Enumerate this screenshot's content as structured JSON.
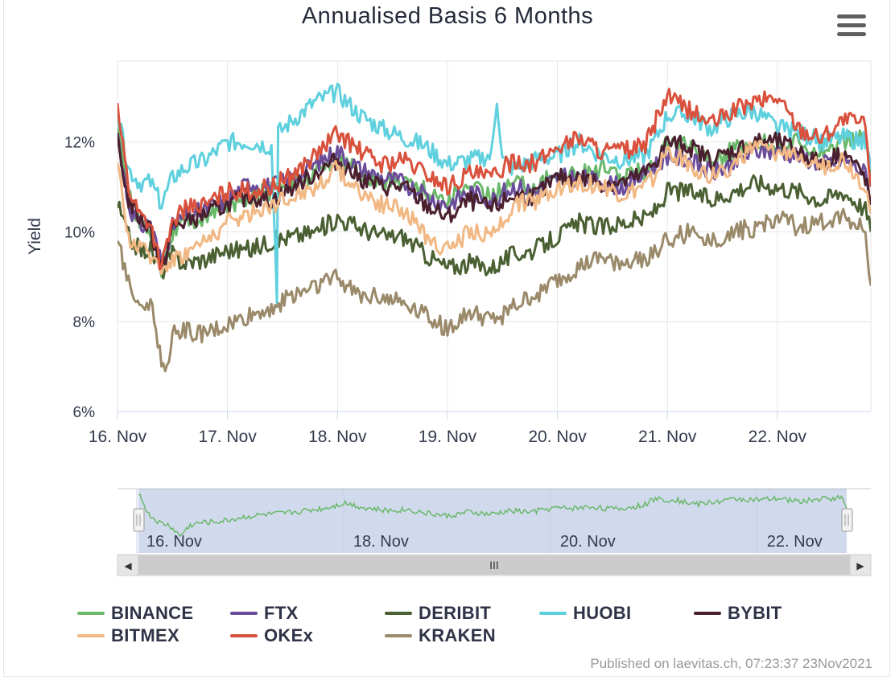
{
  "chart_data": {
    "type": "line",
    "title": "Annualised Basis 6 Months",
    "ylabel": "Yield",
    "xlabel": "",
    "ylim": [
      6,
      13.8
    ],
    "xlim": [
      16.0,
      22.85
    ],
    "yticks": [
      {
        "value": 6,
        "label": "6%"
      },
      {
        "value": 8,
        "label": "8%"
      },
      {
        "value": 10,
        "label": "10%"
      },
      {
        "value": 12,
        "label": "12%"
      }
    ],
    "xticks": [
      {
        "value": 16,
        "label": "16. Nov"
      },
      {
        "value": 17,
        "label": "17. Nov"
      },
      {
        "value": 18,
        "label": "18. Nov"
      },
      {
        "value": 19,
        "label": "19. Nov"
      },
      {
        "value": 20,
        "label": "20. Nov"
      },
      {
        "value": 21,
        "label": "21. Nov"
      },
      {
        "value": 22,
        "label": "22. Nov"
      }
    ],
    "series": [
      {
        "name": "BINANCE",
        "color": "#6ab86a",
        "x": [
          16.0,
          16.1,
          16.2,
          16.3,
          16.4,
          16.5,
          16.6,
          16.8,
          17.0,
          17.2,
          17.4,
          17.6,
          17.8,
          18.0,
          18.2,
          18.4,
          18.6,
          18.8,
          19.0,
          19.2,
          19.4,
          19.6,
          19.8,
          20.0,
          20.2,
          20.4,
          20.6,
          20.8,
          20.9,
          21.0,
          21.2,
          21.4,
          21.6,
          21.8,
          22.0,
          22.2,
          22.4,
          22.6,
          22.8,
          22.85
        ],
        "y": [
          12.5,
          10.8,
          10.2,
          10.0,
          9.2,
          10.0,
          10.2,
          10.3,
          10.6,
          10.8,
          10.9,
          11.1,
          11.3,
          11.7,
          11.3,
          11.1,
          11.2,
          10.9,
          10.7,
          11.0,
          10.8,
          11.1,
          11.0,
          11.3,
          11.3,
          11.4,
          11.2,
          11.4,
          11.6,
          12.0,
          11.9,
          11.6,
          11.8,
          12.0,
          11.9,
          12.0,
          11.8,
          12.0,
          12.1,
          11.3
        ]
      },
      {
        "name": "FTX",
        "color": "#6b4c9a",
        "x": [
          16.0,
          16.1,
          16.2,
          16.3,
          16.4,
          16.5,
          16.6,
          16.8,
          17.0,
          17.2,
          17.4,
          17.6,
          17.8,
          18.0,
          18.2,
          18.4,
          18.6,
          18.8,
          19.0,
          19.2,
          19.4,
          19.6,
          19.8,
          20.0,
          20.2,
          20.4,
          20.6,
          20.8,
          20.9,
          21.0,
          21.2,
          21.4,
          21.6,
          21.8,
          22.0,
          22.2,
          22.4,
          22.6,
          22.8,
          22.85
        ],
        "y": [
          12.2,
          10.6,
          10.1,
          10.2,
          9.3,
          10.1,
          10.3,
          10.5,
          10.7,
          11.1,
          11.0,
          11.2,
          11.5,
          11.8,
          11.4,
          11.2,
          11.1,
          10.8,
          10.6,
          10.9,
          10.7,
          11.0,
          10.9,
          11.2,
          11.2,
          11.1,
          11.0,
          11.3,
          11.5,
          11.7,
          11.6,
          11.3,
          11.5,
          11.8,
          11.8,
          11.7,
          11.5,
          11.6,
          11.3,
          10.7
        ]
      },
      {
        "name": "DERIBIT",
        "color": "#4a6032",
        "x": [
          16.0,
          16.1,
          16.2,
          16.3,
          16.4,
          16.5,
          16.6,
          16.8,
          17.0,
          17.2,
          17.4,
          17.6,
          17.8,
          18.0,
          18.2,
          18.4,
          18.6,
          18.8,
          19.0,
          19.2,
          19.4,
          19.6,
          19.8,
          20.0,
          20.2,
          20.4,
          20.6,
          20.8,
          20.9,
          21.0,
          21.2,
          21.4,
          21.6,
          21.8,
          22.0,
          22.2,
          22.4,
          22.6,
          22.8,
          22.85
        ],
        "y": [
          10.6,
          9.9,
          9.6,
          9.6,
          9.1,
          9.5,
          9.3,
          9.4,
          9.6,
          9.6,
          9.8,
          9.9,
          10.0,
          10.3,
          10.1,
          9.9,
          9.9,
          9.5,
          9.2,
          9.3,
          9.2,
          9.5,
          9.6,
          9.9,
          10.2,
          10.1,
          10.2,
          10.3,
          10.5,
          10.9,
          10.9,
          10.7,
          10.9,
          11.1,
          11.0,
          10.9,
          10.7,
          10.9,
          10.5,
          10.0
        ]
      },
      {
        "name": "HUOBI",
        "color": "#5fd0de",
        "x": [
          16.0,
          16.1,
          16.2,
          16.3,
          16.4,
          16.5,
          16.6,
          16.8,
          17.0,
          17.2,
          17.4,
          17.45,
          17.46,
          17.6,
          17.8,
          18.0,
          18.2,
          18.4,
          18.6,
          18.8,
          19.0,
          19.2,
          19.4,
          19.45,
          19.5,
          19.6,
          19.8,
          20.0,
          20.2,
          20.4,
          20.6,
          20.8,
          20.9,
          21.0,
          21.2,
          21.4,
          21.6,
          21.8,
          22.0,
          22.2,
          22.4,
          22.6,
          22.8,
          22.85
        ],
        "y": [
          12.6,
          11.4,
          11.1,
          11.1,
          10.6,
          11.2,
          11.4,
          11.6,
          12.0,
          12.0,
          11.9,
          8.6,
          12.2,
          12.5,
          12.9,
          13.1,
          12.6,
          12.3,
          12.1,
          11.9,
          11.5,
          11.6,
          11.7,
          13.0,
          11.6,
          11.4,
          11.6,
          11.7,
          12.0,
          11.7,
          11.6,
          11.7,
          12.1,
          12.6,
          12.6,
          12.3,
          12.6,
          12.7,
          12.3,
          12.2,
          12.0,
          12.1,
          12.0,
          11.4
        ]
      },
      {
        "name": "BYBIT",
        "color": "#4a1f2e",
        "x": [
          16.0,
          16.1,
          16.2,
          16.3,
          16.4,
          16.5,
          16.6,
          16.8,
          17.0,
          17.2,
          17.4,
          17.6,
          17.8,
          18.0,
          18.2,
          18.4,
          18.6,
          18.8,
          19.0,
          19.2,
          19.4,
          19.6,
          19.8,
          20.0,
          20.2,
          20.4,
          20.6,
          20.8,
          20.9,
          21.0,
          21.2,
          21.4,
          21.6,
          21.8,
          22.0,
          22.2,
          22.4,
          22.6,
          22.8,
          22.85
        ],
        "y": [
          12.0,
          10.7,
          10.3,
          10.1,
          9.1,
          10.1,
          10.2,
          10.4,
          10.6,
          10.8,
          10.7,
          11.0,
          11.3,
          11.6,
          11.2,
          11.0,
          11.0,
          10.6,
          10.3,
          10.7,
          10.5,
          10.8,
          10.8,
          11.2,
          11.2,
          11.1,
          11.1,
          11.3,
          11.6,
          12.0,
          11.9,
          11.6,
          11.8,
          12.0,
          12.0,
          11.8,
          11.5,
          11.8,
          11.2,
          10.6
        ]
      },
      {
        "name": "BITMEX",
        "color": "#f2b884",
        "x": [
          16.0,
          16.1,
          16.2,
          16.3,
          16.4,
          16.5,
          16.6,
          16.8,
          17.0,
          17.2,
          17.4,
          17.6,
          17.8,
          18.0,
          18.2,
          18.4,
          18.6,
          18.8,
          19.0,
          19.2,
          19.4,
          19.6,
          19.8,
          20.0,
          20.2,
          20.4,
          20.6,
          20.8,
          20.9,
          21.0,
          21.2,
          21.4,
          21.6,
          21.8,
          22.0,
          22.2,
          22.4,
          22.6,
          22.8,
          22.85
        ],
        "y": [
          11.4,
          9.9,
          9.6,
          9.5,
          9.2,
          9.4,
          9.5,
          9.8,
          10.2,
          10.4,
          10.6,
          10.8,
          11.0,
          11.4,
          10.9,
          10.6,
          10.5,
          9.9,
          9.6,
          10.0,
          9.9,
          10.6,
          10.7,
          11.0,
          11.1,
          11.0,
          10.8,
          11.0,
          11.3,
          11.8,
          11.5,
          11.2,
          11.5,
          11.9,
          11.7,
          11.8,
          11.4,
          11.6,
          11.0,
          10.4
        ]
      },
      {
        "name": "OKEx",
        "color": "#d9513c",
        "x": [
          16.0,
          16.1,
          16.2,
          16.3,
          16.4,
          16.5,
          16.6,
          16.8,
          17.0,
          17.2,
          17.4,
          17.6,
          17.8,
          18.0,
          18.2,
          18.4,
          18.6,
          18.8,
          19.0,
          19.2,
          19.4,
          19.6,
          19.8,
          20.0,
          20.2,
          20.4,
          20.6,
          20.8,
          20.9,
          21.0,
          21.2,
          21.4,
          21.6,
          21.8,
          22.0,
          22.2,
          22.4,
          22.6,
          22.8,
          22.85
        ],
        "y": [
          12.8,
          11.0,
          10.4,
          10.2,
          9.2,
          10.2,
          10.5,
          10.6,
          10.9,
          10.9,
          11.0,
          11.3,
          11.7,
          12.2,
          11.8,
          11.5,
          11.6,
          11.3,
          11.0,
          11.3,
          11.2,
          11.6,
          11.5,
          11.9,
          12.1,
          11.8,
          11.8,
          11.9,
          12.5,
          13.0,
          12.7,
          12.4,
          12.7,
          12.9,
          13.0,
          12.3,
          12.1,
          12.5,
          12.4,
          11.0
        ]
      },
      {
        "name": "KRAKEN",
        "color": "#9a8a6a",
        "x": [
          16.0,
          16.1,
          16.2,
          16.3,
          16.4,
          16.45,
          16.5,
          16.6,
          16.8,
          17.0,
          17.2,
          17.4,
          17.6,
          17.8,
          18.0,
          18.2,
          18.4,
          18.6,
          18.8,
          19.0,
          19.2,
          19.4,
          19.6,
          19.8,
          20.0,
          20.2,
          20.4,
          20.6,
          20.8,
          20.9,
          21.0,
          21.2,
          21.4,
          21.6,
          21.8,
          22.0,
          22.2,
          22.4,
          22.6,
          22.8,
          22.85
        ],
        "y": [
          9.8,
          8.9,
          8.4,
          8.4,
          7.2,
          7.0,
          7.7,
          7.8,
          7.7,
          7.9,
          8.1,
          8.3,
          8.6,
          8.8,
          9.0,
          8.6,
          8.6,
          8.4,
          8.2,
          7.8,
          8.2,
          8.0,
          8.3,
          8.6,
          8.9,
          9.2,
          9.4,
          9.3,
          9.4,
          9.6,
          9.8,
          10.0,
          9.8,
          10.0,
          10.1,
          10.3,
          10.1,
          10.2,
          10.4,
          10.0,
          8.8
        ]
      }
    ]
  },
  "navigator": {
    "labels": [
      "16. Nov",
      "18. Nov",
      "20. Nov",
      "22. Nov"
    ],
    "scroll_label": "III",
    "left_arrow": "◀",
    "right_arrow": "▶"
  },
  "menu_label": "Chart context menu",
  "credits": "Published on laevitas.ch, 07:23:37 23Nov2021"
}
